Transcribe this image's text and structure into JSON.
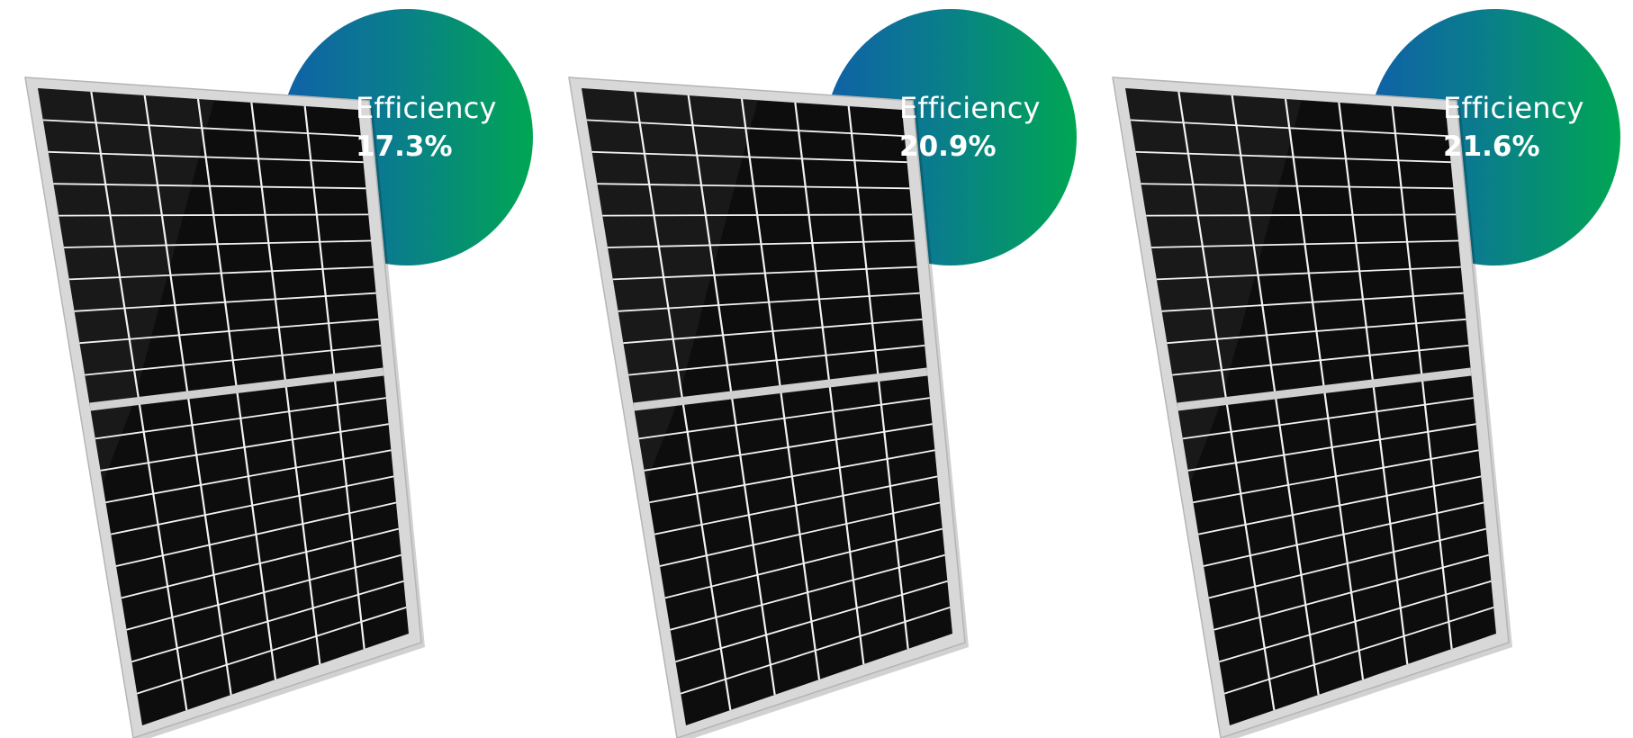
{
  "products": [
    {
      "badge": {
        "label": "Efficiency",
        "value": "17.3%"
      }
    },
    {
      "badge": {
        "label": "Efficiency",
        "value": "20.9%"
      }
    },
    {
      "badge": {
        "label": "Efficiency",
        "value": "21.6%"
      }
    }
  ],
  "colors": {
    "badge_gradient_start": "#1060a8",
    "badge_gradient_end": "#00a653",
    "panel_frame": "#d8d8d8",
    "panel_cells": "#0d0d0d",
    "cell_grid": "#f2f2f2"
  },
  "panel": {
    "cell_columns": 6,
    "upper_rows": 10,
    "lower_rows": 10
  }
}
